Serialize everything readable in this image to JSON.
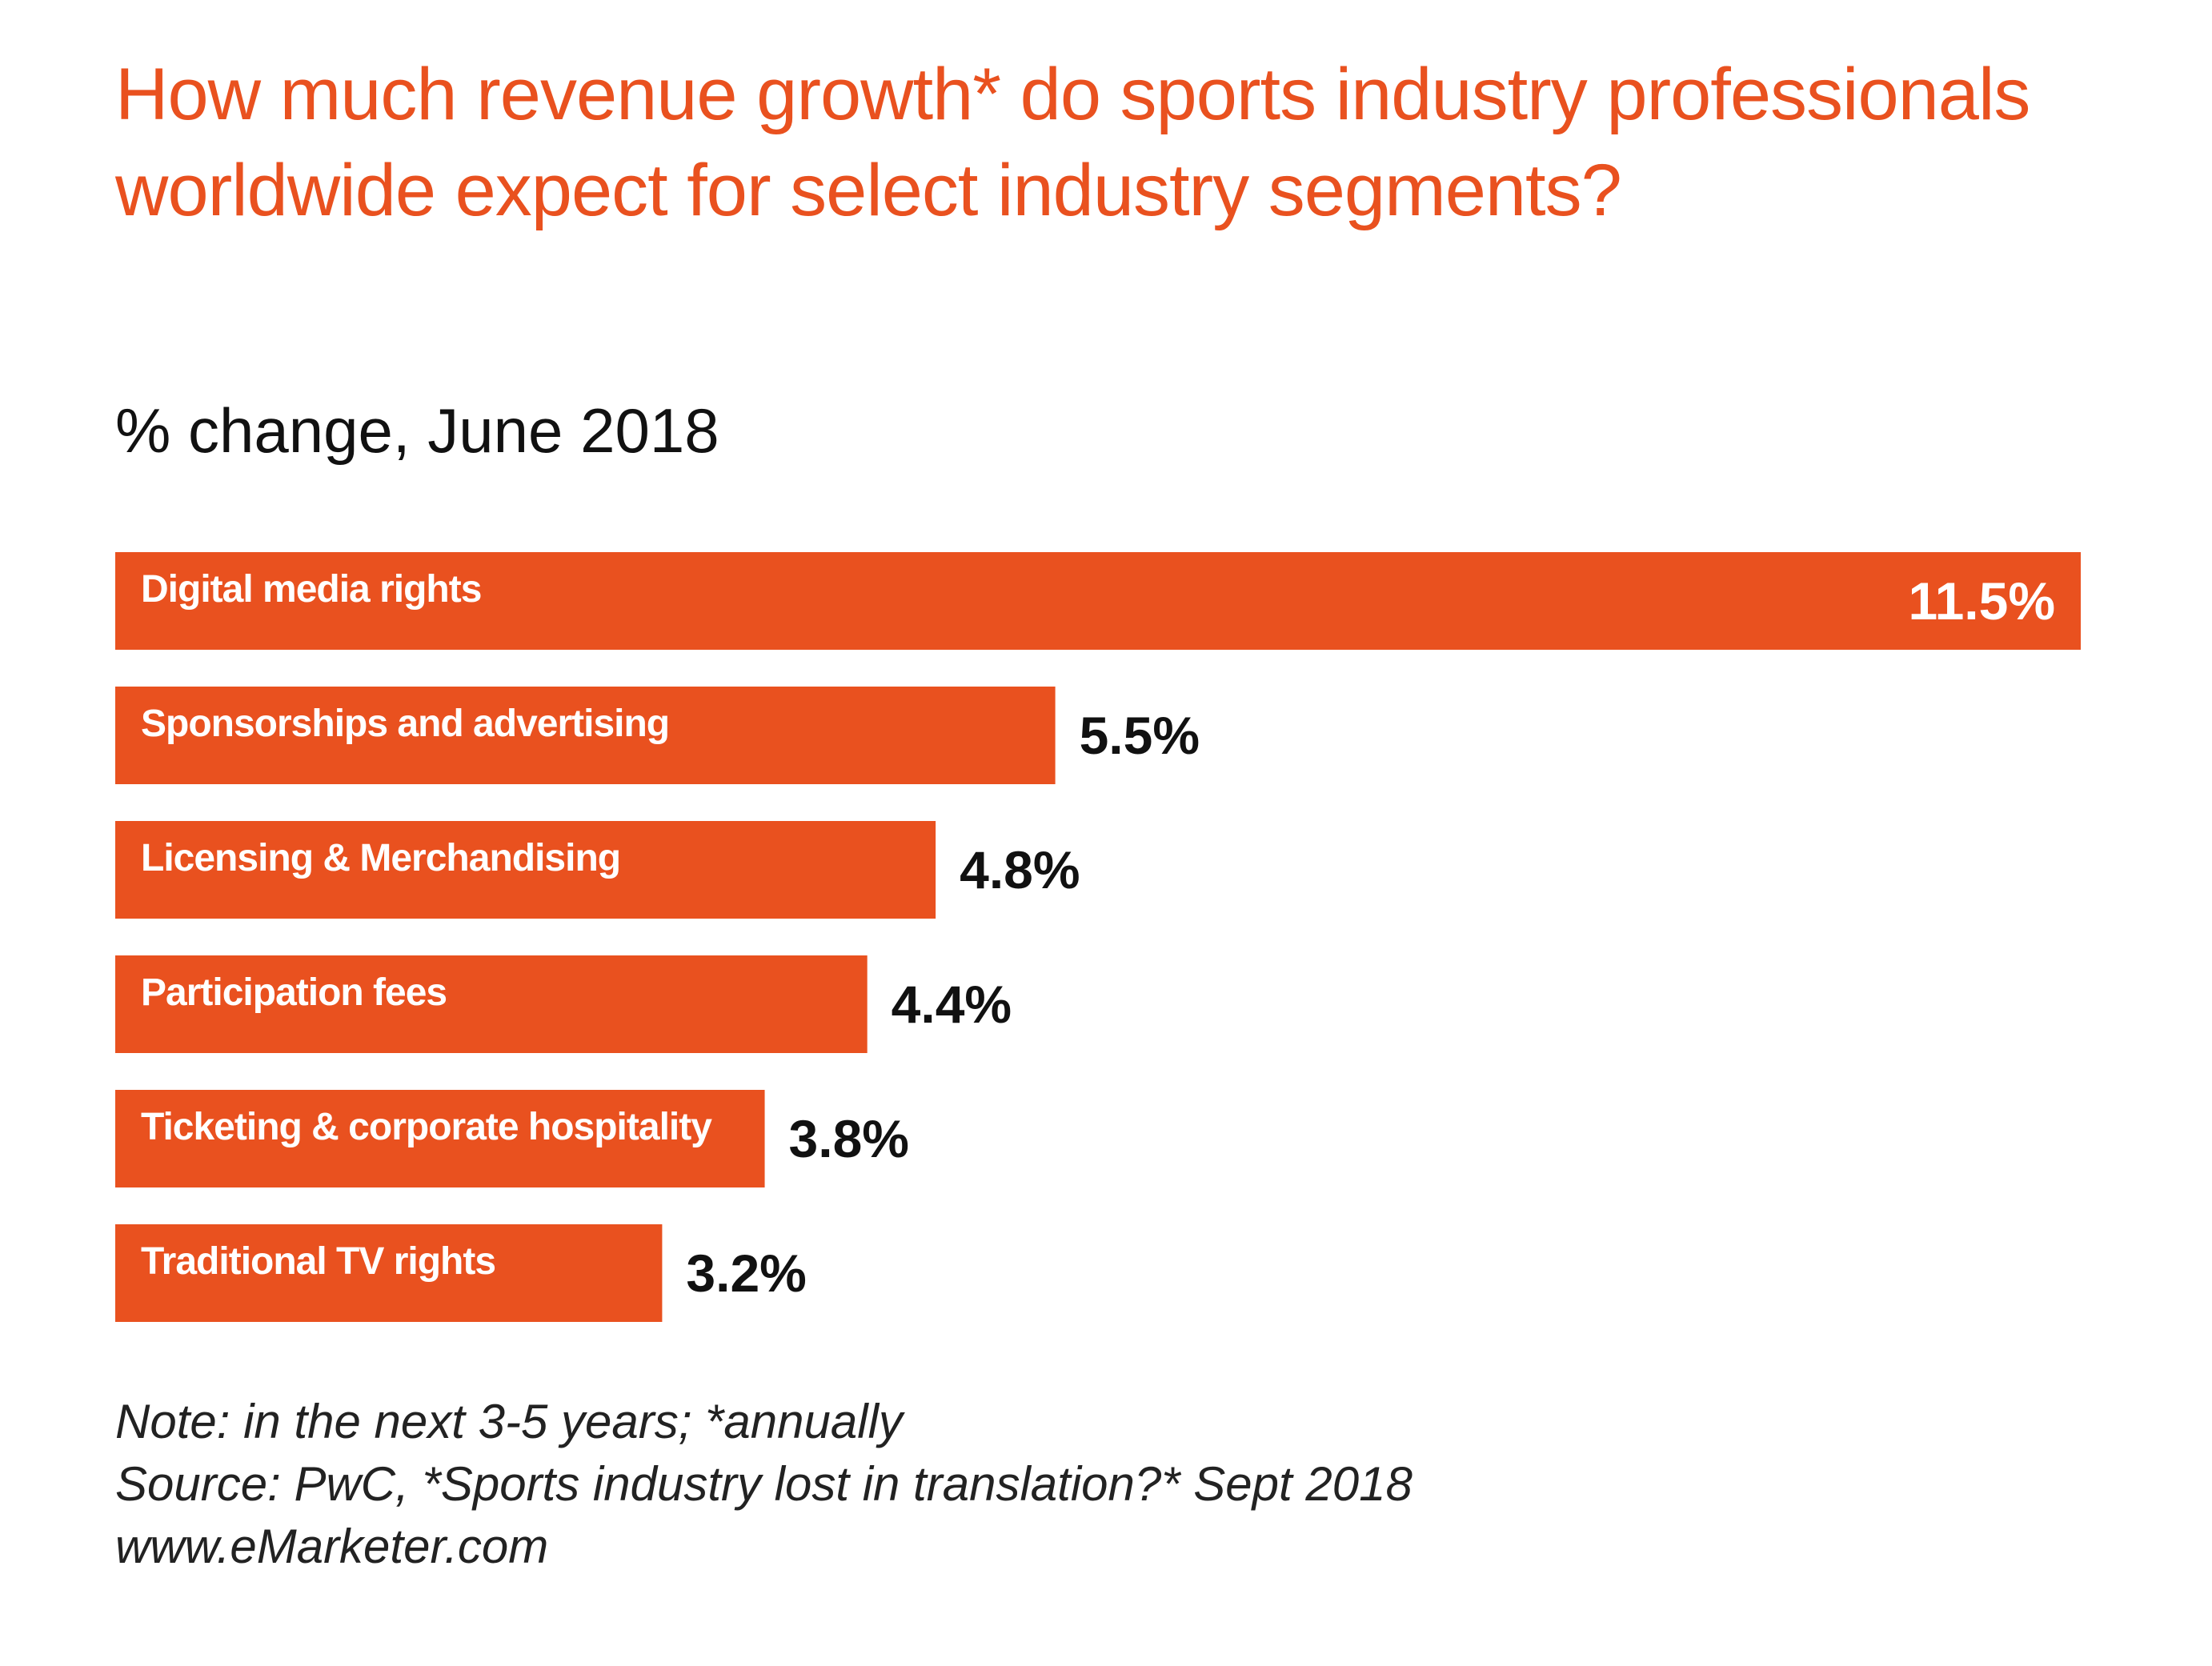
{
  "colors": {
    "accent": "#E9511F",
    "text": "#111111",
    "bar_text": "#ffffff"
  },
  "chart_data": {
    "type": "bar",
    "orientation": "horizontal",
    "title": "How much revenue growth* do sports industry professionals worldwide expect for select industry segments?",
    "subtitle": "% change, June 2018",
    "categories": [
      "Digital media rights",
      "Sponsorships and advertising",
      "Licensing & Merchandising",
      "Participation fees",
      "Ticketing & corporate hospitality",
      "Traditional TV rights"
    ],
    "values": [
      11.5,
      5.5,
      4.8,
      4.4,
      3.8,
      3.2
    ],
    "value_labels": [
      "11.5%",
      "5.5%",
      "4.8%",
      "4.4%",
      "3.8%",
      "3.2%"
    ],
    "xlim": [
      0,
      11.5
    ],
    "grid": false,
    "legend": "none"
  },
  "footer": {
    "note": "Note: in the next 3-5 years; *annually",
    "source": "Source: PwC, *Sports industry lost in translation?* Sept 2018",
    "site": "www.eMarketer.com"
  }
}
